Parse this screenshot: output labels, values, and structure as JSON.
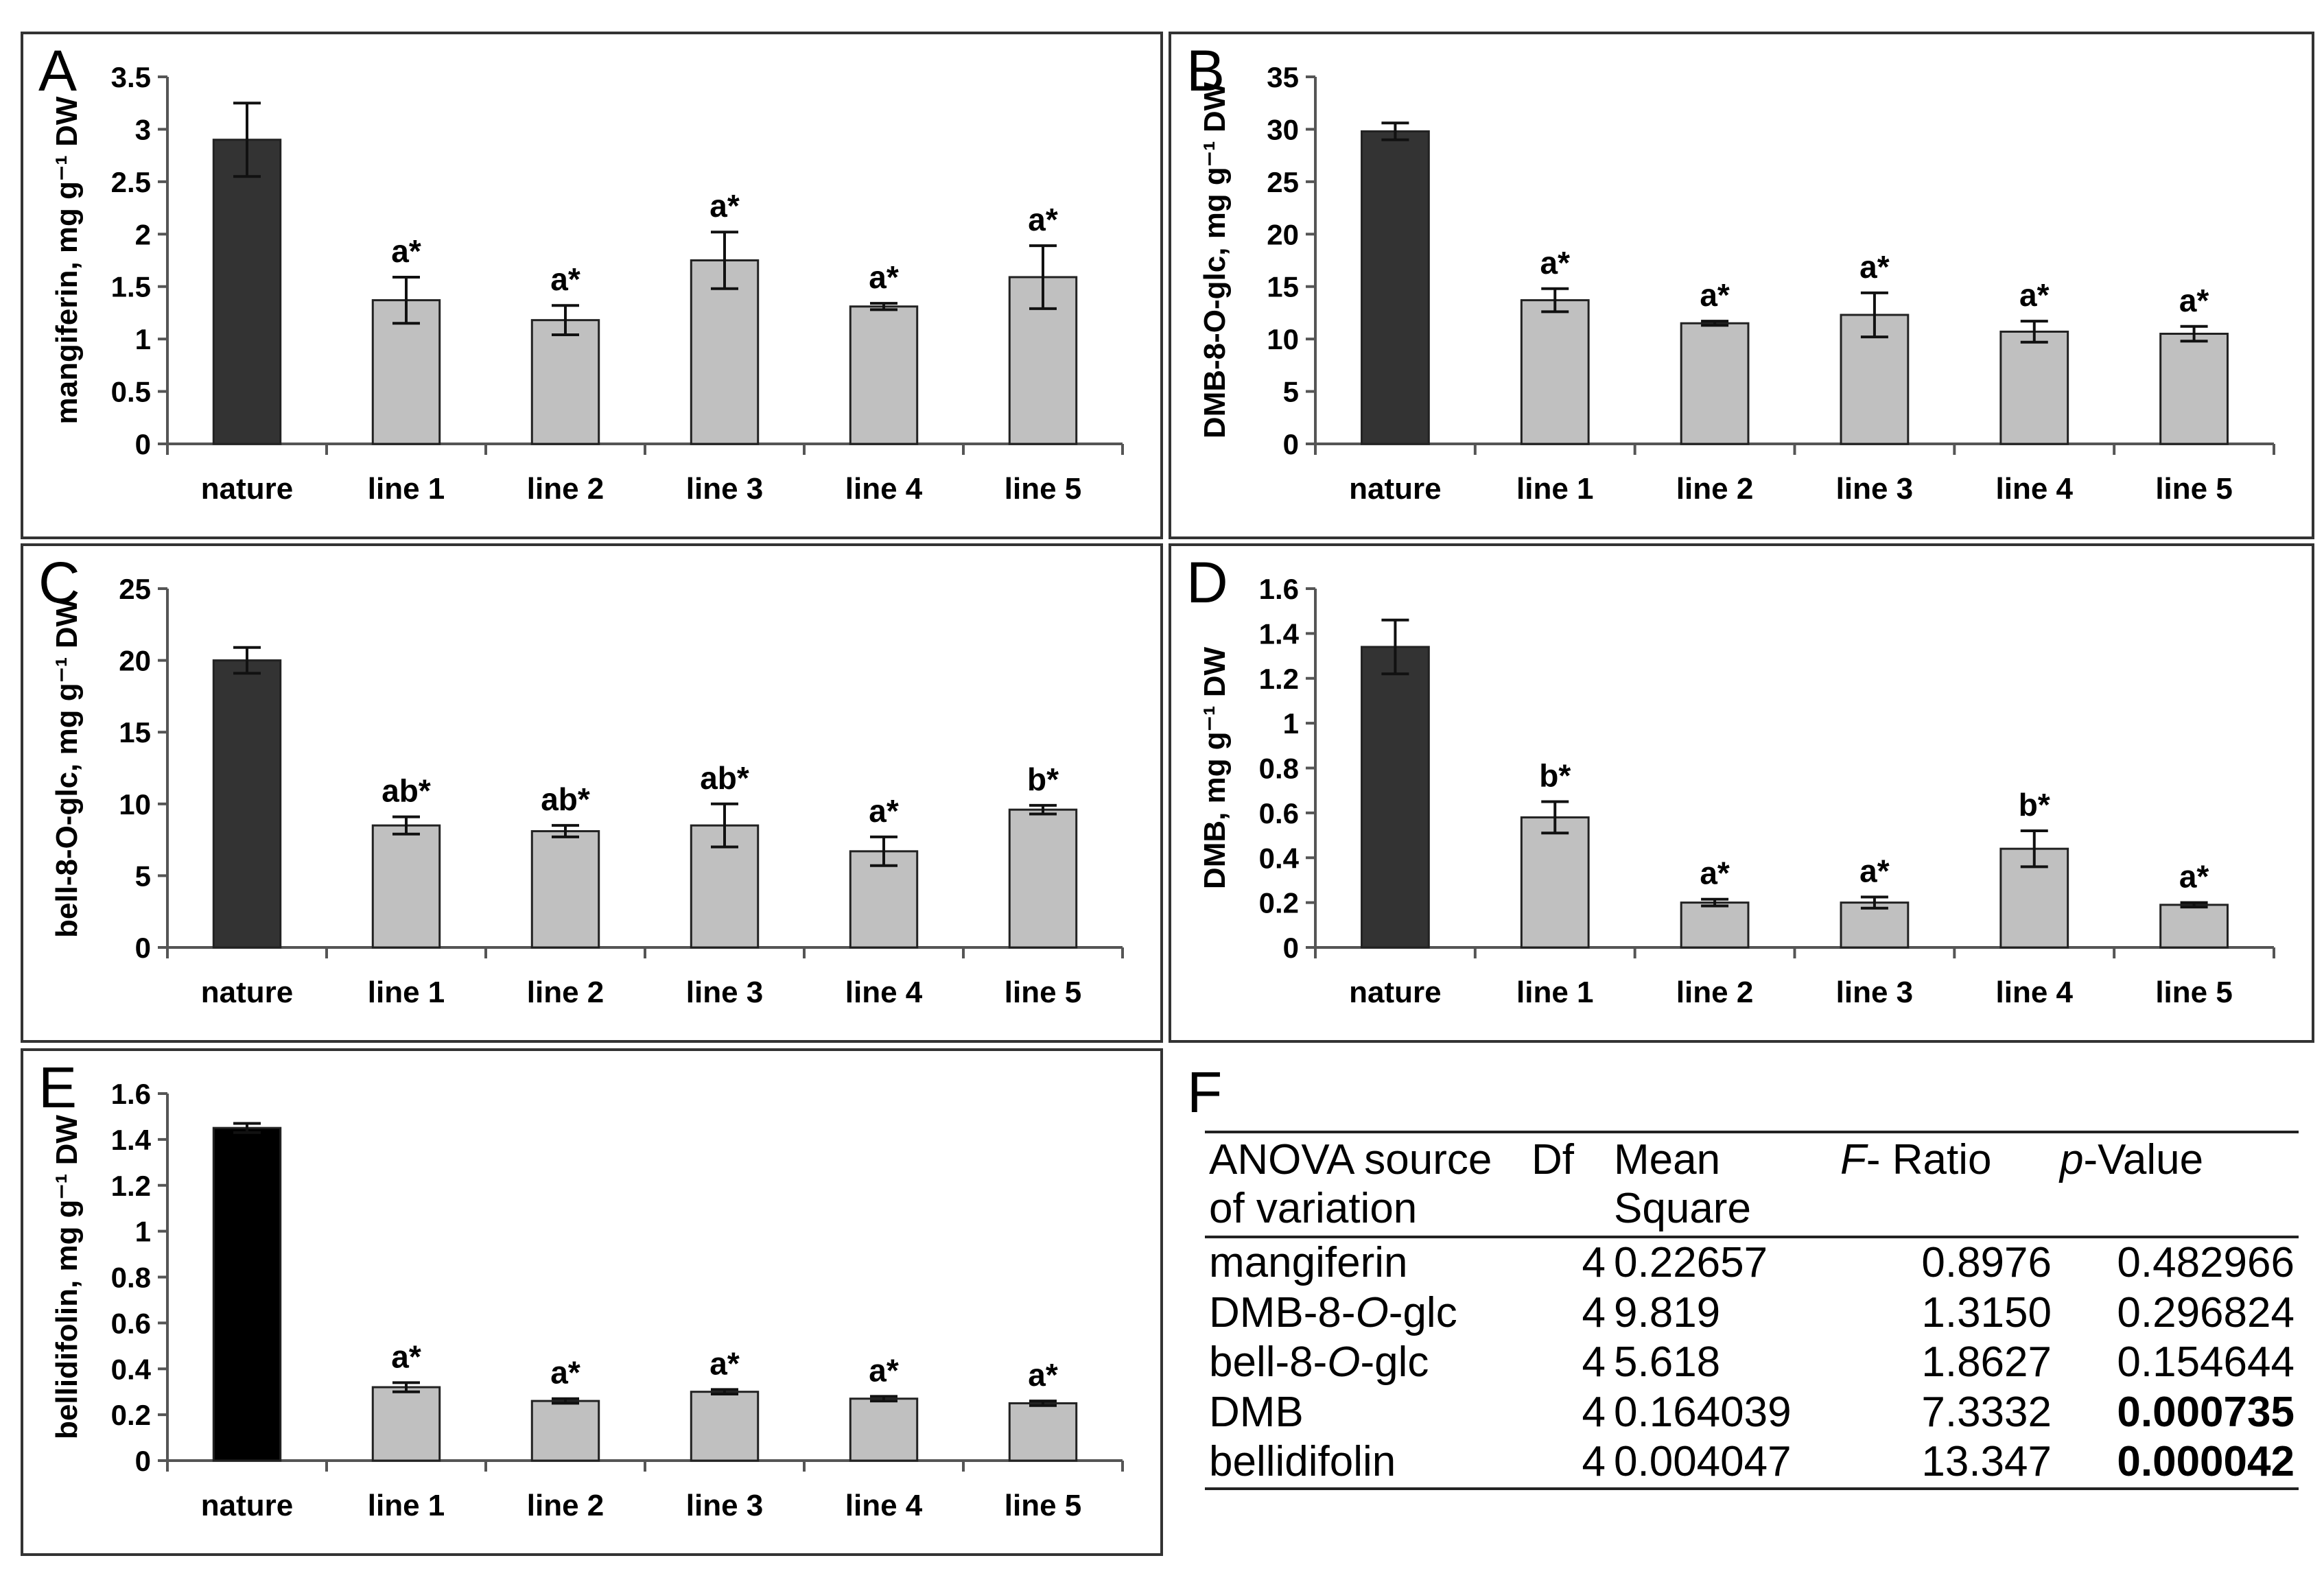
{
  "chart_data": [
    {
      "panel": "A",
      "type": "bar",
      "ylabel": "mangiferin, mg g⁻¹ DW",
      "ylim": [
        0,
        3.5
      ],
      "yticks": [
        "0",
        "0.5",
        "1",
        "1.5",
        "2",
        "2.5",
        "3",
        "3.5"
      ],
      "categories": [
        "nature",
        "line 1",
        "line 2",
        "line 3",
        "line 4",
        "line 5"
      ],
      "values": [
        2.9,
        1.37,
        1.18,
        1.75,
        1.31,
        1.59
      ],
      "errors": [
        0.35,
        0.22,
        0.14,
        0.27,
        0.03,
        0.3
      ],
      "labels": [
        "",
        "a*",
        "a*",
        "a*",
        "a*",
        "a*"
      ],
      "colors": [
        "#333333",
        "#c0c0c0",
        "#c0c0c0",
        "#c0c0c0",
        "#c0c0c0",
        "#c0c0c0"
      ]
    },
    {
      "panel": "B",
      "type": "bar",
      "ylabel": "DMB-8-O-glc, mg g⁻¹ DW",
      "ylim": [
        0,
        35
      ],
      "yticks": [
        "0",
        "5",
        "10",
        "15",
        "20",
        "25",
        "30",
        "35"
      ],
      "categories": [
        "nature",
        "line 1",
        "line 2",
        "line 3",
        "line 4",
        "line 5"
      ],
      "values": [
        29.8,
        13.7,
        11.5,
        12.3,
        10.7,
        10.5
      ],
      "errors": [
        0.8,
        1.1,
        0.2,
        2.1,
        1.0,
        0.7
      ],
      "labels": [
        "",
        "a*",
        "a*",
        "a*",
        "a*",
        "a*"
      ],
      "colors": [
        "#333333",
        "#c0c0c0",
        "#c0c0c0",
        "#c0c0c0",
        "#c0c0c0",
        "#c0c0c0"
      ]
    },
    {
      "panel": "C",
      "type": "bar",
      "ylabel": "bell-8-O-glc, mg g⁻¹ DW",
      "ylim": [
        0,
        25
      ],
      "yticks": [
        "0",
        "5",
        "10",
        "15",
        "20",
        "25"
      ],
      "categories": [
        "nature",
        "line 1",
        "line 2",
        "line 3",
        "line 4",
        "line 5"
      ],
      "values": [
        20.0,
        8.5,
        8.1,
        8.5,
        6.7,
        9.6
      ],
      "errors": [
        0.9,
        0.6,
        0.4,
        1.5,
        1.0,
        0.3
      ],
      "labels": [
        "",
        "ab*",
        "ab*",
        "ab*",
        "a*",
        "b*"
      ],
      "colors": [
        "#333333",
        "#c0c0c0",
        "#c0c0c0",
        "#c0c0c0",
        "#c0c0c0",
        "#c0c0c0"
      ]
    },
    {
      "panel": "D",
      "type": "bar",
      "ylabel": "DMB, mg g⁻¹ DW",
      "ylim": [
        0,
        1.6
      ],
      "yticks": [
        "0",
        "0.2",
        "0.4",
        "0.6",
        "0.8",
        "1",
        "1.2",
        "1.4",
        "1.6"
      ],
      "categories": [
        "nature",
        "line 1",
        "line 2",
        "line 3",
        "line 4",
        "line 5"
      ],
      "values": [
        1.34,
        0.58,
        0.2,
        0.2,
        0.44,
        0.19
      ],
      "errors": [
        0.12,
        0.07,
        0.015,
        0.025,
        0.08,
        0.01
      ],
      "labels": [
        "",
        "b*",
        "a*",
        "a*",
        "b*",
        "a*"
      ],
      "colors": [
        "#333333",
        "#c0c0c0",
        "#c0c0c0",
        "#c0c0c0",
        "#c0c0c0",
        "#c0c0c0"
      ]
    },
    {
      "panel": "E",
      "type": "bar",
      "ylabel": "bellidifolin, mg g⁻¹ DW",
      "ylim": [
        0,
        1.6
      ],
      "yticks": [
        "0",
        "0.2",
        "0.4",
        "0.6",
        "0.8",
        "1",
        "1.2",
        "1.4",
        "1.6"
      ],
      "categories": [
        "nature",
        "line 1",
        "line 2",
        "line 3",
        "line 4",
        "line 5"
      ],
      "values": [
        1.45,
        0.32,
        0.26,
        0.3,
        0.27,
        0.25
      ],
      "errors": [
        0.02,
        0.02,
        0.01,
        0.01,
        0.01,
        0.01
      ],
      "labels": [
        "",
        "a*",
        "a*",
        "a*",
        "a*",
        "a*"
      ],
      "colors": [
        "#000000",
        "#c0c0c0",
        "#c0c0c0",
        "#c0c0c0",
        "#c0c0c0",
        "#c0c0c0"
      ]
    }
  ],
  "table": {
    "panel": "F",
    "type": "table",
    "headers": {
      "source": "ANOVA source of variation",
      "df": "Df",
      "mean_square": "Mean Square",
      "f_ratio": "F- Ratio",
      "p_value": "p-Value"
    },
    "rows": [
      {
        "source": "mangiferin",
        "df": "4",
        "ms": "0.22657",
        "f": "0.8976",
        "p": "0.482966",
        "significant": false
      },
      {
        "source": "DMB-8-O-glc",
        "df": "4",
        "ms": "9.819",
        "f": "1.3150",
        "p": "0.296824",
        "significant": false
      },
      {
        "source": "bell-8-O-glc",
        "df": "4",
        "ms": "5.618",
        "f": "1.8627",
        "p": "0.154644",
        "significant": false
      },
      {
        "source": "DMB",
        "df": "4",
        "ms": "0.164039",
        "f": "7.3332",
        "p": "0.000735",
        "significant": true
      },
      {
        "source": "bellidifolin",
        "df": "4",
        "ms": "0.004047",
        "f": "13.347",
        "p": "0.000042",
        "significant": true
      }
    ]
  }
}
